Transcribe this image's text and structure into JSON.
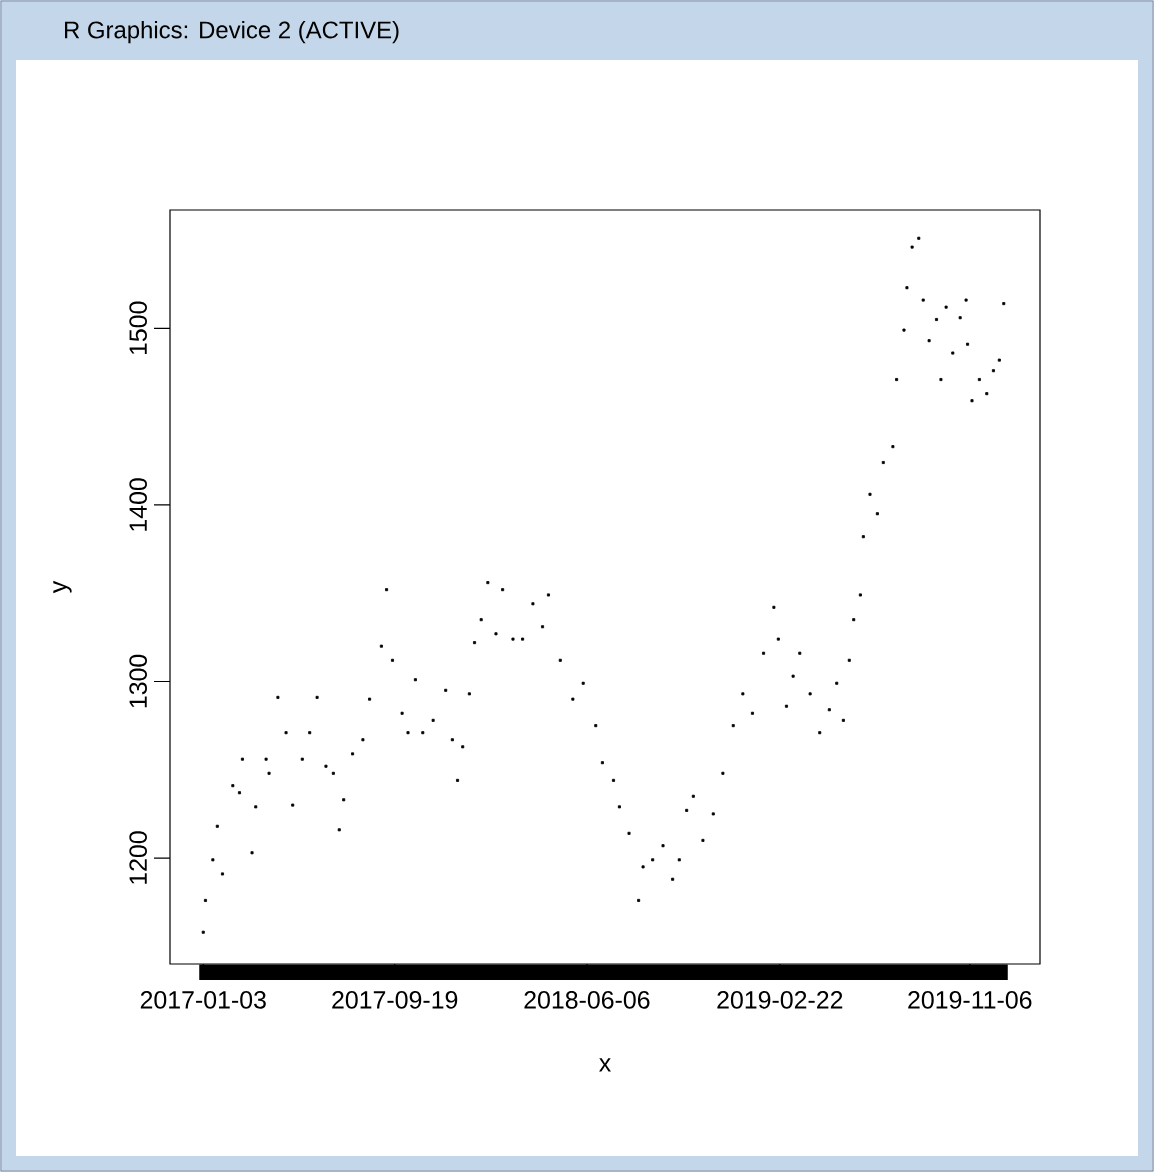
{
  "chart_data": {
    "type": "scatter",
    "xlabel": "x",
    "ylabel": "y",
    "marker": "square",
    "grid": false,
    "annotations": [
      "R Graphics: Device 2 (ACTIVE)"
    ],
    "xlim": [
      "2016-11-19",
      "2020-02-09"
    ],
    "ylim": [
      1140,
      1567
    ],
    "xticks": [
      "2017-01-03",
      "2017-09-19",
      "2018-06-06",
      "2019-02-22",
      "2019-11-06"
    ],
    "yticks": [
      1200,
      1300,
      1400,
      1500
    ],
    "series": [
      {
        "color": "#000000",
        "x": [
          "2017-01-03",
          "2017-01-06",
          "2017-01-16",
          "2017-01-22",
          "2017-01-29",
          "2017-02-12",
          "2017-02-21",
          "2017-02-25",
          "2017-03-10",
          "2017-03-15",
          "2017-03-29",
          "2017-04-02",
          "2017-04-14",
          "2017-04-25",
          "2017-05-04",
          "2017-05-17",
          "2017-05-27",
          "2017-06-06",
          "2017-06-18",
          "2017-06-28",
          "2017-07-06",
          "2017-07-12",
          "2017-07-24",
          "2017-08-07",
          "2017-08-16",
          "2017-09-01",
          "2017-09-08",
          "2017-09-16",
          "2017-09-29",
          "2017-10-07",
          "2017-10-17",
          "2017-10-27",
          "2017-11-10",
          "2017-11-27",
          "2017-12-06",
          "2017-12-13",
          "2017-12-20",
          "2017-12-29",
          "2018-01-05",
          "2018-01-14",
          "2018-01-23",
          "2018-02-03",
          "2018-02-12",
          "2018-02-26",
          "2018-03-11",
          "2018-03-25",
          "2018-04-07",
          "2018-04-15",
          "2018-05-01",
          "2018-05-18",
          "2018-06-01",
          "2018-06-18",
          "2018-06-27",
          "2018-07-12",
          "2018-07-20",
          "2018-08-02",
          "2018-08-15",
          "2018-08-21",
          "2018-09-03",
          "2018-09-17",
          "2018-09-30",
          "2018-10-09",
          "2018-10-19",
          "2018-10-28",
          "2018-11-10",
          "2018-11-24",
          "2018-12-07",
          "2018-12-21",
          "2019-01-03",
          "2019-01-16",
          "2019-01-31",
          "2019-02-14",
          "2019-02-20",
          "2019-03-03",
          "2019-03-12",
          "2019-03-21",
          "2019-04-04",
          "2019-04-17",
          "2019-04-30",
          "2019-05-10",
          "2019-05-19",
          "2019-05-27",
          "2019-06-02",
          "2019-06-11",
          "2019-06-15",
          "2019-06-24",
          "2019-07-04",
          "2019-07-12",
          "2019-07-25",
          "2019-07-30",
          "2019-08-09",
          "2019-08-13",
          "2019-08-20",
          "2019-08-29",
          "2019-09-04",
          "2019-09-12",
          "2019-09-22",
          "2019-09-28",
          "2019-10-05",
          "2019-10-14",
          "2019-10-24",
          "2019-11-01",
          "2019-11-03",
          "2019-11-09",
          "2019-11-19",
          "2019-11-29",
          "2019-12-08",
          "2019-12-16",
          "2019-12-22"
        ],
        "values": [
          1158,
          1176,
          1199,
          1218,
          1191,
          1241,
          1237,
          1256,
          1203,
          1229,
          1256,
          1248,
          1291,
          1271,
          1230,
          1256,
          1271,
          1291,
          1252,
          1248,
          1216,
          1233,
          1259,
          1267,
          1290,
          1320,
          1352,
          1312,
          1282,
          1271,
          1301,
          1271,
          1278,
          1295,
          1267,
          1244,
          1263,
          1293,
          1322,
          1335,
          1356,
          1327,
          1352,
          1324,
          1324,
          1344,
          1331,
          1349,
          1312,
          1290,
          1299,
          1275,
          1254,
          1244,
          1229,
          1214,
          1176,
          1195,
          1199,
          1207,
          1188,
          1199,
          1227,
          1235,
          1210,
          1225,
          1248,
          1275,
          1293,
          1282,
          1316,
          1342,
          1324,
          1286,
          1303,
          1316,
          1293,
          1271,
          1284,
          1299,
          1278,
          1312,
          1335,
          1349,
          1382,
          1406,
          1395,
          1424,
          1433,
          1471,
          1499,
          1523,
          1546,
          1551,
          1516,
          1493,
          1505,
          1471,
          1512,
          1486,
          1506,
          1516,
          1491,
          1459,
          1471,
          1463,
          1476,
          1482,
          1514
        ]
      }
    ]
  }
}
